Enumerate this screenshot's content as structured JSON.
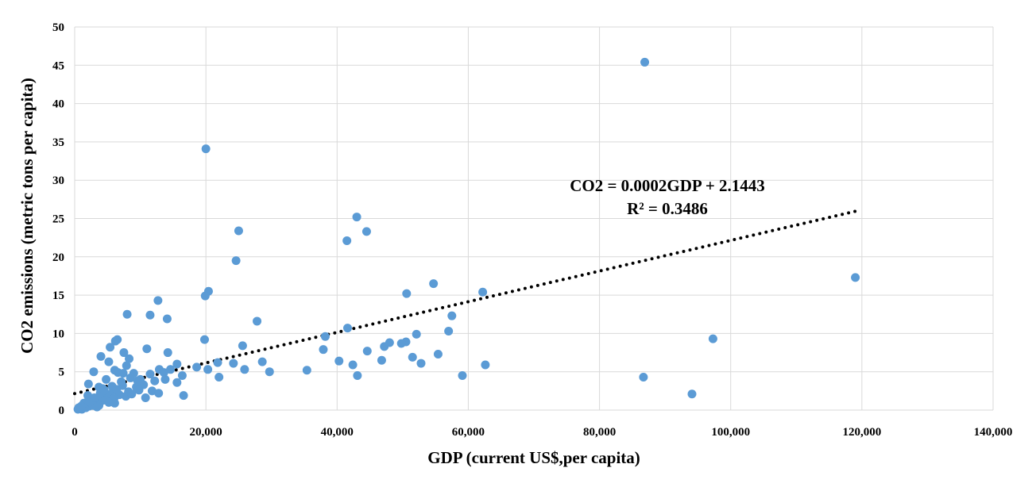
{
  "chart_data": {
    "type": "scatter",
    "title": "",
    "xlabel": "GDP (current US$,per capita)",
    "ylabel": "CO2  emissions (metric tons per capita)",
    "xlim": [
      0,
      140000
    ],
    "ylim": [
      0,
      50
    ],
    "x_ticks": [
      0,
      20000,
      40000,
      60000,
      80000,
      100000,
      120000,
      140000
    ],
    "x_tick_labels": [
      "0",
      "20,000",
      "40,000",
      "60,000",
      "80,000",
      "100,000",
      "120,000",
      "140,000"
    ],
    "y_ticks": [
      0,
      5,
      10,
      15,
      20,
      25,
      30,
      35,
      40,
      45,
      50
    ],
    "y_tick_labels": [
      "0",
      "5",
      "10",
      "15",
      "20",
      "25",
      "30",
      "35",
      "40",
      "45",
      "50"
    ],
    "grid": true,
    "legend": "none",
    "marker_color": "#5b9bd5",
    "trendline": {
      "type": "linear",
      "slope": 0.0002,
      "intercept": 2.1443,
      "x_range": [
        0,
        119000
      ],
      "style": "dotted",
      "color": "#000000",
      "equation_label": "CO2 = 0.0002GDP + 2.1443",
      "r2_label": "R² = 0.3486"
    },
    "points": [
      [
        86900,
        45.4
      ],
      [
        20000,
        34.1
      ],
      [
        43000,
        25.2
      ],
      [
        25000,
        23.4
      ],
      [
        44500,
        23.3
      ],
      [
        41500,
        22.1
      ],
      [
        24600,
        19.5
      ],
      [
        119000,
        17.3
      ],
      [
        54700,
        16.5
      ],
      [
        20400,
        15.5
      ],
      [
        62200,
        15.4
      ],
      [
        50600,
        15.2
      ],
      [
        19900,
        14.9
      ],
      [
        12700,
        14.3
      ],
      [
        8000,
        12.5
      ],
      [
        11500,
        12.4
      ],
      [
        57500,
        12.3
      ],
      [
        14100,
        11.9
      ],
      [
        27800,
        11.6
      ],
      [
        41600,
        10.7
      ],
      [
        57000,
        10.3
      ],
      [
        52100,
        9.9
      ],
      [
        38200,
        9.6
      ],
      [
        97300,
        9.3
      ],
      [
        6500,
        9.2
      ],
      [
        6200,
        9.0
      ],
      [
        19800,
        9.2
      ],
      [
        50500,
        8.9
      ],
      [
        48000,
        8.8
      ],
      [
        49800,
        8.7
      ],
      [
        25600,
        8.4
      ],
      [
        47200,
        8.3
      ],
      [
        5400,
        8.2
      ],
      [
        11000,
        8.0
      ],
      [
        37900,
        7.9
      ],
      [
        44600,
        7.7
      ],
      [
        14200,
        7.5
      ],
      [
        7500,
        7.5
      ],
      [
        55400,
        7.3
      ],
      [
        4000,
        7.0
      ],
      [
        51500,
        6.9
      ],
      [
        8300,
        6.7
      ],
      [
        46800,
        6.5
      ],
      [
        40300,
        6.4
      ],
      [
        5200,
        6.3
      ],
      [
        28600,
        6.3
      ],
      [
        52800,
        6.1
      ],
      [
        21800,
        6.2
      ],
      [
        15600,
        6.0
      ],
      [
        62600,
        5.9
      ],
      [
        42400,
        5.9
      ],
      [
        24200,
        6.1
      ],
      [
        18600,
        5.6
      ],
      [
        7900,
        5.8
      ],
      [
        25900,
        5.3
      ],
      [
        35400,
        5.2
      ],
      [
        6100,
        5.2
      ],
      [
        12900,
        5.3
      ],
      [
        2900,
        5.0
      ],
      [
        14600,
        5.3
      ],
      [
        20300,
        5.3
      ],
      [
        29700,
        5.0
      ],
      [
        9000,
        4.8
      ],
      [
        7400,
        4.8
      ],
      [
        59100,
        4.5
      ],
      [
        43100,
        4.5
      ],
      [
        86700,
        4.3
      ],
      [
        22000,
        4.3
      ],
      [
        16400,
        4.5
      ],
      [
        13800,
        4.0
      ],
      [
        11500,
        4.7
      ],
      [
        6600,
        4.9
      ],
      [
        4800,
        4.0
      ],
      [
        10000,
        4.0
      ],
      [
        8500,
        4.2
      ],
      [
        12200,
        3.8
      ],
      [
        15600,
        3.6
      ],
      [
        7300,
        3.2
      ],
      [
        10500,
        3.3
      ],
      [
        9400,
        3.0
      ],
      [
        2100,
        3.4
      ],
      [
        4300,
        2.8
      ],
      [
        5900,
        2.6
      ],
      [
        3700,
        3.0
      ],
      [
        9800,
        2.6
      ],
      [
        11800,
        2.5
      ],
      [
        12800,
        2.2
      ],
      [
        8200,
        2.4
      ],
      [
        16600,
        1.9
      ],
      [
        94100,
        2.1
      ],
      [
        7800,
        1.8
      ],
      [
        10800,
        1.6
      ],
      [
        6800,
        2.0
      ],
      [
        5500,
        2.1
      ],
      [
        4900,
        1.8
      ],
      [
        6000,
        1.5
      ],
      [
        3300,
        1.4
      ],
      [
        2500,
        1.3
      ],
      [
        4100,
        1.2
      ],
      [
        1800,
        1.0
      ],
      [
        3100,
        0.9
      ],
      [
        6100,
        0.9
      ],
      [
        2600,
        0.8
      ],
      [
        1500,
        0.6
      ],
      [
        3700,
        0.6
      ],
      [
        2200,
        0.5
      ],
      [
        1200,
        0.4
      ],
      [
        900,
        0.3
      ],
      [
        700,
        0.2
      ],
      [
        500,
        0.1
      ],
      [
        1100,
        0.1
      ],
      [
        1700,
        0.3
      ],
      [
        3400,
        0.4
      ],
      [
        2800,
        0.6
      ],
      [
        4700,
        1.3
      ],
      [
        5200,
        1.0
      ],
      [
        1400,
        0.9
      ],
      [
        2000,
        1.9
      ],
      [
        3900,
        2.2
      ],
      [
        4500,
        2.6
      ],
      [
        5700,
        3.1
      ],
      [
        6400,
        2.7
      ],
      [
        7100,
        3.7
      ],
      [
        8700,
        2.1
      ],
      [
        2300,
        1.1
      ],
      [
        1000,
        0.5
      ],
      [
        600,
        0.3
      ],
      [
        3000,
        1.6
      ],
      [
        13600,
        4.9
      ],
      [
        9600,
        3.8
      ]
    ]
  }
}
